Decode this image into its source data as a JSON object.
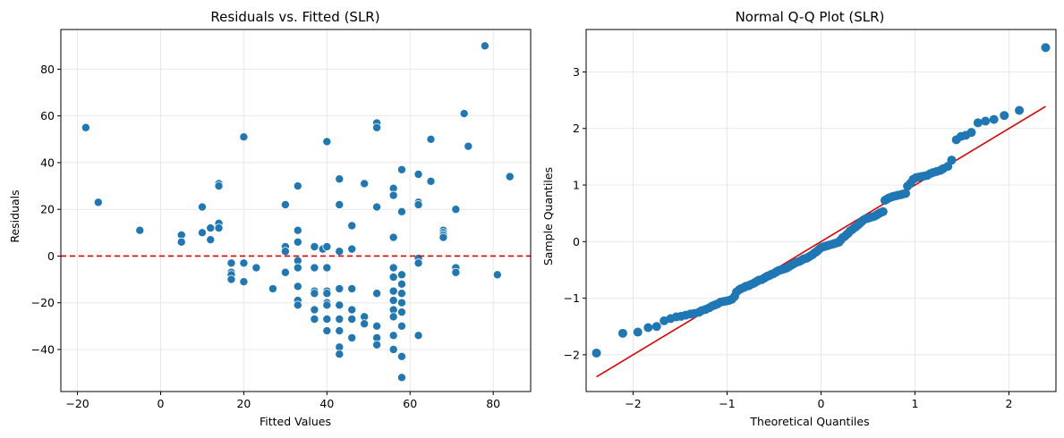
{
  "colors": {
    "points": "#1f77b4",
    "reference_line": "#e00000",
    "grid": "#e8e8e8",
    "axes": "#000000"
  },
  "chart_data": [
    {
      "type": "scatter",
      "title": "Residuals vs. Fitted (SLR)",
      "xlabel": "Fitted Values",
      "ylabel": "Residuals",
      "xlim": [
        -24,
        89
      ],
      "ylim": [
        -58,
        97
      ],
      "xticks": [
        -20,
        0,
        20,
        40,
        60,
        80
      ],
      "xtick_labels": [
        "−20",
        "0",
        "20",
        "40",
        "60",
        "80"
      ],
      "yticks": [
        -40,
        -20,
        0,
        20,
        40,
        60,
        80
      ],
      "yticks_labels": [
        "−40",
        "−20",
        "0",
        "20",
        "40",
        "60",
        "80"
      ],
      "grid": true,
      "reference_line": {
        "type": "horizontal",
        "y": 0,
        "style": "dashed",
        "color": "#e00000"
      },
      "points": [
        [
          -18,
          55
        ],
        [
          -15,
          23
        ],
        [
          -5,
          11
        ],
        [
          5,
          9
        ],
        [
          5,
          6
        ],
        [
          10,
          21
        ],
        [
          10,
          10
        ],
        [
          12,
          12
        ],
        [
          12,
          7
        ],
        [
          14,
          31
        ],
        [
          14,
          30
        ],
        [
          14,
          14
        ],
        [
          14,
          12
        ],
        [
          17,
          -3
        ],
        [
          17,
          -7
        ],
        [
          17,
          -8
        ],
        [
          17,
          -10
        ],
        [
          20,
          51
        ],
        [
          20,
          -3
        ],
        [
          20,
          -11
        ],
        [
          23,
          -5
        ],
        [
          27,
          -14
        ],
        [
          30,
          22
        ],
        [
          30,
          4
        ],
        [
          30,
          2
        ],
        [
          30,
          -7
        ],
        [
          33,
          30
        ],
        [
          33,
          11
        ],
        [
          33,
          6
        ],
        [
          33,
          -2
        ],
        [
          33,
          -5
        ],
        [
          33,
          -13
        ],
        [
          33,
          -19
        ],
        [
          33,
          -21
        ],
        [
          37,
          4
        ],
        [
          37,
          -5
        ],
        [
          37,
          -15
        ],
        [
          37,
          -16
        ],
        [
          37,
          -23
        ],
        [
          37,
          -27
        ],
        [
          39,
          3
        ],
        [
          40,
          49
        ],
        [
          40,
          4
        ],
        [
          40,
          -5
        ],
        [
          40,
          -15
        ],
        [
          40,
          -16
        ],
        [
          40,
          -20
        ],
        [
          40,
          -21
        ],
        [
          40,
          -27
        ],
        [
          40,
          -32
        ],
        [
          43,
          33
        ],
        [
          43,
          22
        ],
        [
          43,
          2
        ],
        [
          43,
          -14
        ],
        [
          43,
          -21
        ],
        [
          43,
          -27
        ],
        [
          43,
          -32
        ],
        [
          43,
          -39
        ],
        [
          43,
          -42
        ],
        [
          46,
          13
        ],
        [
          46,
          3
        ],
        [
          46,
          -14
        ],
        [
          46,
          -23
        ],
        [
          46,
          -27
        ],
        [
          46,
          -35
        ],
        [
          49,
          31
        ],
        [
          49,
          -26
        ],
        [
          49,
          -29
        ],
        [
          52,
          57
        ],
        [
          52,
          55
        ],
        [
          52,
          21
        ],
        [
          52,
          -16
        ],
        [
          52,
          -30
        ],
        [
          52,
          -35
        ],
        [
          52,
          -38
        ],
        [
          56,
          29
        ],
        [
          56,
          26
        ],
        [
          56,
          8
        ],
        [
          56,
          -5
        ],
        [
          56,
          -9
        ],
        [
          56,
          -15
        ],
        [
          56,
          -19
        ],
        [
          56,
          -23
        ],
        [
          56,
          -26
        ],
        [
          56,
          -34
        ],
        [
          56,
          -40
        ],
        [
          58,
          37
        ],
        [
          58,
          19
        ],
        [
          58,
          -8
        ],
        [
          58,
          -12
        ],
        [
          58,
          -16
        ],
        [
          58,
          -20
        ],
        [
          58,
          -24
        ],
        [
          58,
          -30
        ],
        [
          58,
          -43
        ],
        [
          58,
          -52
        ],
        [
          62,
          35
        ],
        [
          62,
          23
        ],
        [
          62,
          22
        ],
        [
          62,
          -1
        ],
        [
          62,
          -3
        ],
        [
          62,
          -34
        ],
        [
          65,
          50
        ],
        [
          65,
          32
        ],
        [
          68,
          11
        ],
        [
          68,
          10
        ],
        [
          68,
          9
        ],
        [
          68,
          8
        ],
        [
          71,
          20
        ],
        [
          71,
          -5
        ],
        [
          71,
          -7
        ],
        [
          73,
          61
        ],
        [
          74,
          47
        ],
        [
          78,
          90
        ],
        [
          81,
          -8
        ],
        [
          84,
          34
        ]
      ]
    },
    {
      "type": "scatter",
      "title": "Normal Q-Q Plot (SLR)",
      "xlabel": "Theoretical Quantiles",
      "ylabel": "Sample Quantiles",
      "xlim": [
        -2.5,
        2.5
      ],
      "ylim": [
        -2.65,
        3.75
      ],
      "xticks": [
        -2,
        -1,
        0,
        1,
        2
      ],
      "xtick_labels": [
        "−2",
        "−1",
        "0",
        "1",
        "2"
      ],
      "yticks": [
        -2,
        -1,
        0,
        1,
        2,
        3
      ],
      "yticks_labels": [
        "−2",
        "−1",
        "0",
        "1",
        "2",
        "3"
      ],
      "grid": true,
      "reference_line": {
        "type": "diagonal",
        "from": [
          -2.39,
          -2.39
        ],
        "to": [
          2.39,
          2.39
        ],
        "style": "solid",
        "color": "#e00000"
      },
      "points": [
        [
          -2.39,
          -1.97
        ],
        [
          -2.11,
          -1.62
        ],
        [
          -1.95,
          -1.6
        ],
        [
          -1.84,
          -1.52
        ],
        [
          -1.75,
          -1.5
        ],
        [
          -1.67,
          -1.4
        ],
        [
          -1.6,
          -1.36
        ],
        [
          -1.54,
          -1.33
        ],
        [
          -1.49,
          -1.32
        ],
        [
          -1.44,
          -1.3
        ],
        [
          -1.39,
          -1.28
        ],
        [
          -1.35,
          -1.27
        ],
        [
          -1.3,
          -1.25
        ],
        [
          -1.27,
          -1.22
        ],
        [
          -1.23,
          -1.2
        ],
        [
          -1.19,
          -1.17
        ],
        [
          -1.16,
          -1.14
        ],
        [
          -1.13,
          -1.12
        ],
        [
          -1.1,
          -1.1
        ],
        [
          -1.07,
          -1.07
        ],
        [
          -1.04,
          -1.06
        ],
        [
          -1.01,
          -1.05
        ],
        [
          -0.98,
          -1.04
        ],
        [
          -0.95,
          -1.02
        ],
        [
          -0.92,
          -0.97
        ],
        [
          -0.9,
          -0.89
        ],
        [
          -0.87,
          -0.85
        ],
        [
          -0.85,
          -0.83
        ],
        [
          -0.82,
          -0.81
        ],
        [
          -0.8,
          -0.79
        ],
        [
          -0.77,
          -0.78
        ],
        [
          -0.75,
          -0.76
        ],
        [
          -0.72,
          -0.74
        ],
        [
          -0.7,
          -0.72
        ],
        [
          -0.68,
          -0.7
        ],
        [
          -0.66,
          -0.68
        ],
        [
          -0.63,
          -0.67
        ],
        [
          -0.61,
          -0.65
        ],
        [
          -0.59,
          -0.63
        ],
        [
          -0.57,
          -0.61
        ],
        [
          -0.55,
          -0.6
        ],
        [
          -0.53,
          -0.58
        ],
        [
          -0.51,
          -0.57
        ],
        [
          -0.49,
          -0.55
        ],
        [
          -0.47,
          -0.53
        ],
        [
          -0.45,
          -0.51
        ],
        [
          -0.43,
          -0.5
        ],
        [
          -0.41,
          -0.49
        ],
        [
          -0.39,
          -0.48
        ],
        [
          -0.37,
          -0.47
        ],
        [
          -0.35,
          -0.45
        ],
        [
          -0.33,
          -0.43
        ],
        [
          -0.31,
          -0.41
        ],
        [
          -0.29,
          -0.39
        ],
        [
          -0.27,
          -0.37
        ],
        [
          -0.25,
          -0.36
        ],
        [
          -0.23,
          -0.35
        ],
        [
          -0.21,
          -0.33
        ],
        [
          -0.19,
          -0.31
        ],
        [
          -0.17,
          -0.3
        ],
        [
          -0.15,
          -0.29
        ],
        [
          -0.13,
          -0.27
        ],
        [
          -0.11,
          -0.25
        ],
        [
          -0.09,
          -0.23
        ],
        [
          -0.07,
          -0.2
        ],
        [
          -0.05,
          -0.18
        ],
        [
          -0.03,
          -0.15
        ],
        [
          -0.01,
          -0.12
        ],
        [
          0.01,
          -0.1
        ],
        [
          0.03,
          -0.09
        ],
        [
          0.05,
          -0.08
        ],
        [
          0.07,
          -0.07
        ],
        [
          0.09,
          -0.06
        ],
        [
          0.11,
          -0.05
        ],
        [
          0.13,
          -0.04
        ],
        [
          0.15,
          -0.03
        ],
        [
          0.17,
          -0.02
        ],
        [
          0.19,
          -0.01
        ],
        [
          0.21,
          0.03
        ],
        [
          0.23,
          0.07
        ],
        [
          0.25,
          0.09
        ],
        [
          0.27,
          0.12
        ],
        [
          0.29,
          0.15
        ],
        [
          0.31,
          0.19
        ],
        [
          0.33,
          0.21
        ],
        [
          0.35,
          0.24
        ],
        [
          0.37,
          0.26
        ],
        [
          0.39,
          0.29
        ],
        [
          0.41,
          0.32
        ],
        [
          0.43,
          0.35
        ],
        [
          0.45,
          0.38
        ],
        [
          0.47,
          0.4
        ],
        [
          0.49,
          0.41
        ],
        [
          0.51,
          0.42
        ],
        [
          0.53,
          0.43
        ],
        [
          0.55,
          0.44
        ],
        [
          0.57,
          0.45
        ],
        [
          0.59,
          0.47
        ],
        [
          0.61,
          0.49
        ],
        [
          0.63,
          0.51
        ],
        [
          0.66,
          0.53
        ],
        [
          0.68,
          0.73
        ],
        [
          0.7,
          0.75
        ],
        [
          0.72,
          0.77
        ],
        [
          0.75,
          0.79
        ],
        [
          0.77,
          0.8
        ],
        [
          0.8,
          0.81
        ],
        [
          0.82,
          0.82
        ],
        [
          0.85,
          0.83
        ],
        [
          0.87,
          0.84
        ],
        [
          0.9,
          0.85
        ],
        [
          0.92,
          0.98
        ],
        [
          0.95,
          1.03
        ],
        [
          0.98,
          1.1
        ],
        [
          1.01,
          1.13
        ],
        [
          1.04,
          1.14
        ],
        [
          1.07,
          1.15
        ],
        [
          1.1,
          1.16
        ],
        [
          1.13,
          1.17
        ],
        [
          1.16,
          1.2
        ],
        [
          1.19,
          1.22
        ],
        [
          1.23,
          1.24
        ],
        [
          1.27,
          1.26
        ],
        [
          1.3,
          1.29
        ],
        [
          1.35,
          1.33
        ],
        [
          1.39,
          1.44
        ],
        [
          1.44,
          1.8
        ],
        [
          1.49,
          1.86
        ],
        [
          1.54,
          1.88
        ],
        [
          1.6,
          1.93
        ],
        [
          1.67,
          2.1
        ],
        [
          1.75,
          2.13
        ],
        [
          1.84,
          2.16
        ],
        [
          1.95,
          2.23
        ],
        [
          2.11,
          2.32
        ],
        [
          2.39,
          3.43
        ]
      ]
    }
  ]
}
